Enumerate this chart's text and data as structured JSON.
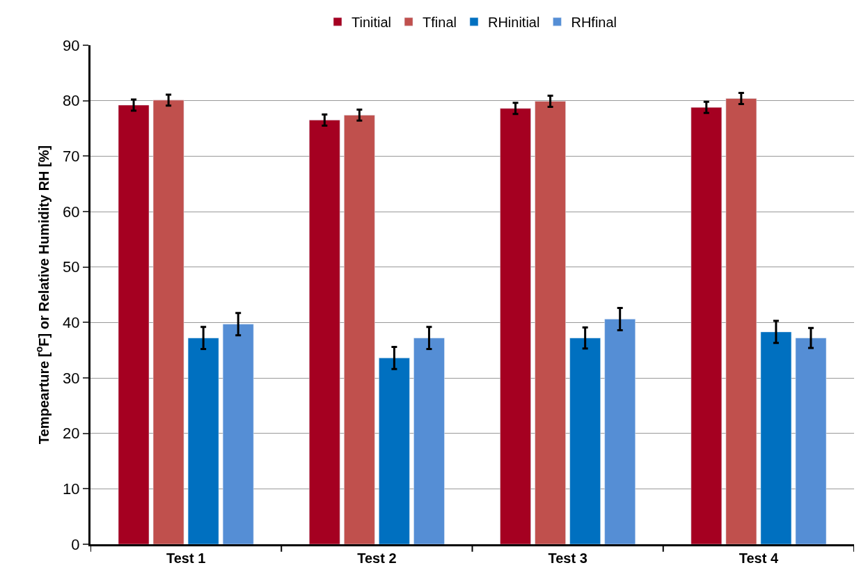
{
  "chart_data": {
    "type": "bar",
    "ylabel": "Tempearture [$^{o}$F] or Relative Humidity RH [%]",
    "categories": [
      "Test 1",
      "Test 2",
      "Test 3",
      "Test 4"
    ],
    "series": [
      {
        "name": "Tinitial",
        "color": "#a50021",
        "values": [
          79.2,
          76.5,
          78.6,
          78.8
        ],
        "errors": [
          1.0,
          1.0,
          1.0,
          1.0
        ]
      },
      {
        "name": "Tfinal",
        "color": "#c0504d",
        "values": [
          80.1,
          77.4,
          79.9,
          80.4
        ],
        "errors": [
          1.0,
          1.0,
          1.0,
          1.0
        ]
      },
      {
        "name": "RHinitial",
        "color": "#0070c0",
        "values": [
          37.2,
          33.6,
          37.2,
          38.3
        ],
        "errors": [
          2.0,
          2.0,
          1.9,
          2.0
        ]
      },
      {
        "name": "RHfinal",
        "color": "#558ed5",
        "values": [
          39.7,
          37.2,
          40.6,
          37.2
        ],
        "errors": [
          2.0,
          2.0,
          2.0,
          1.8
        ]
      }
    ],
    "ylim": [
      0,
      90
    ],
    "yticks": [
      0,
      10,
      20,
      30,
      40,
      50,
      60,
      70,
      80,
      90
    ],
    "grid": "y",
    "legend": "top"
  }
}
